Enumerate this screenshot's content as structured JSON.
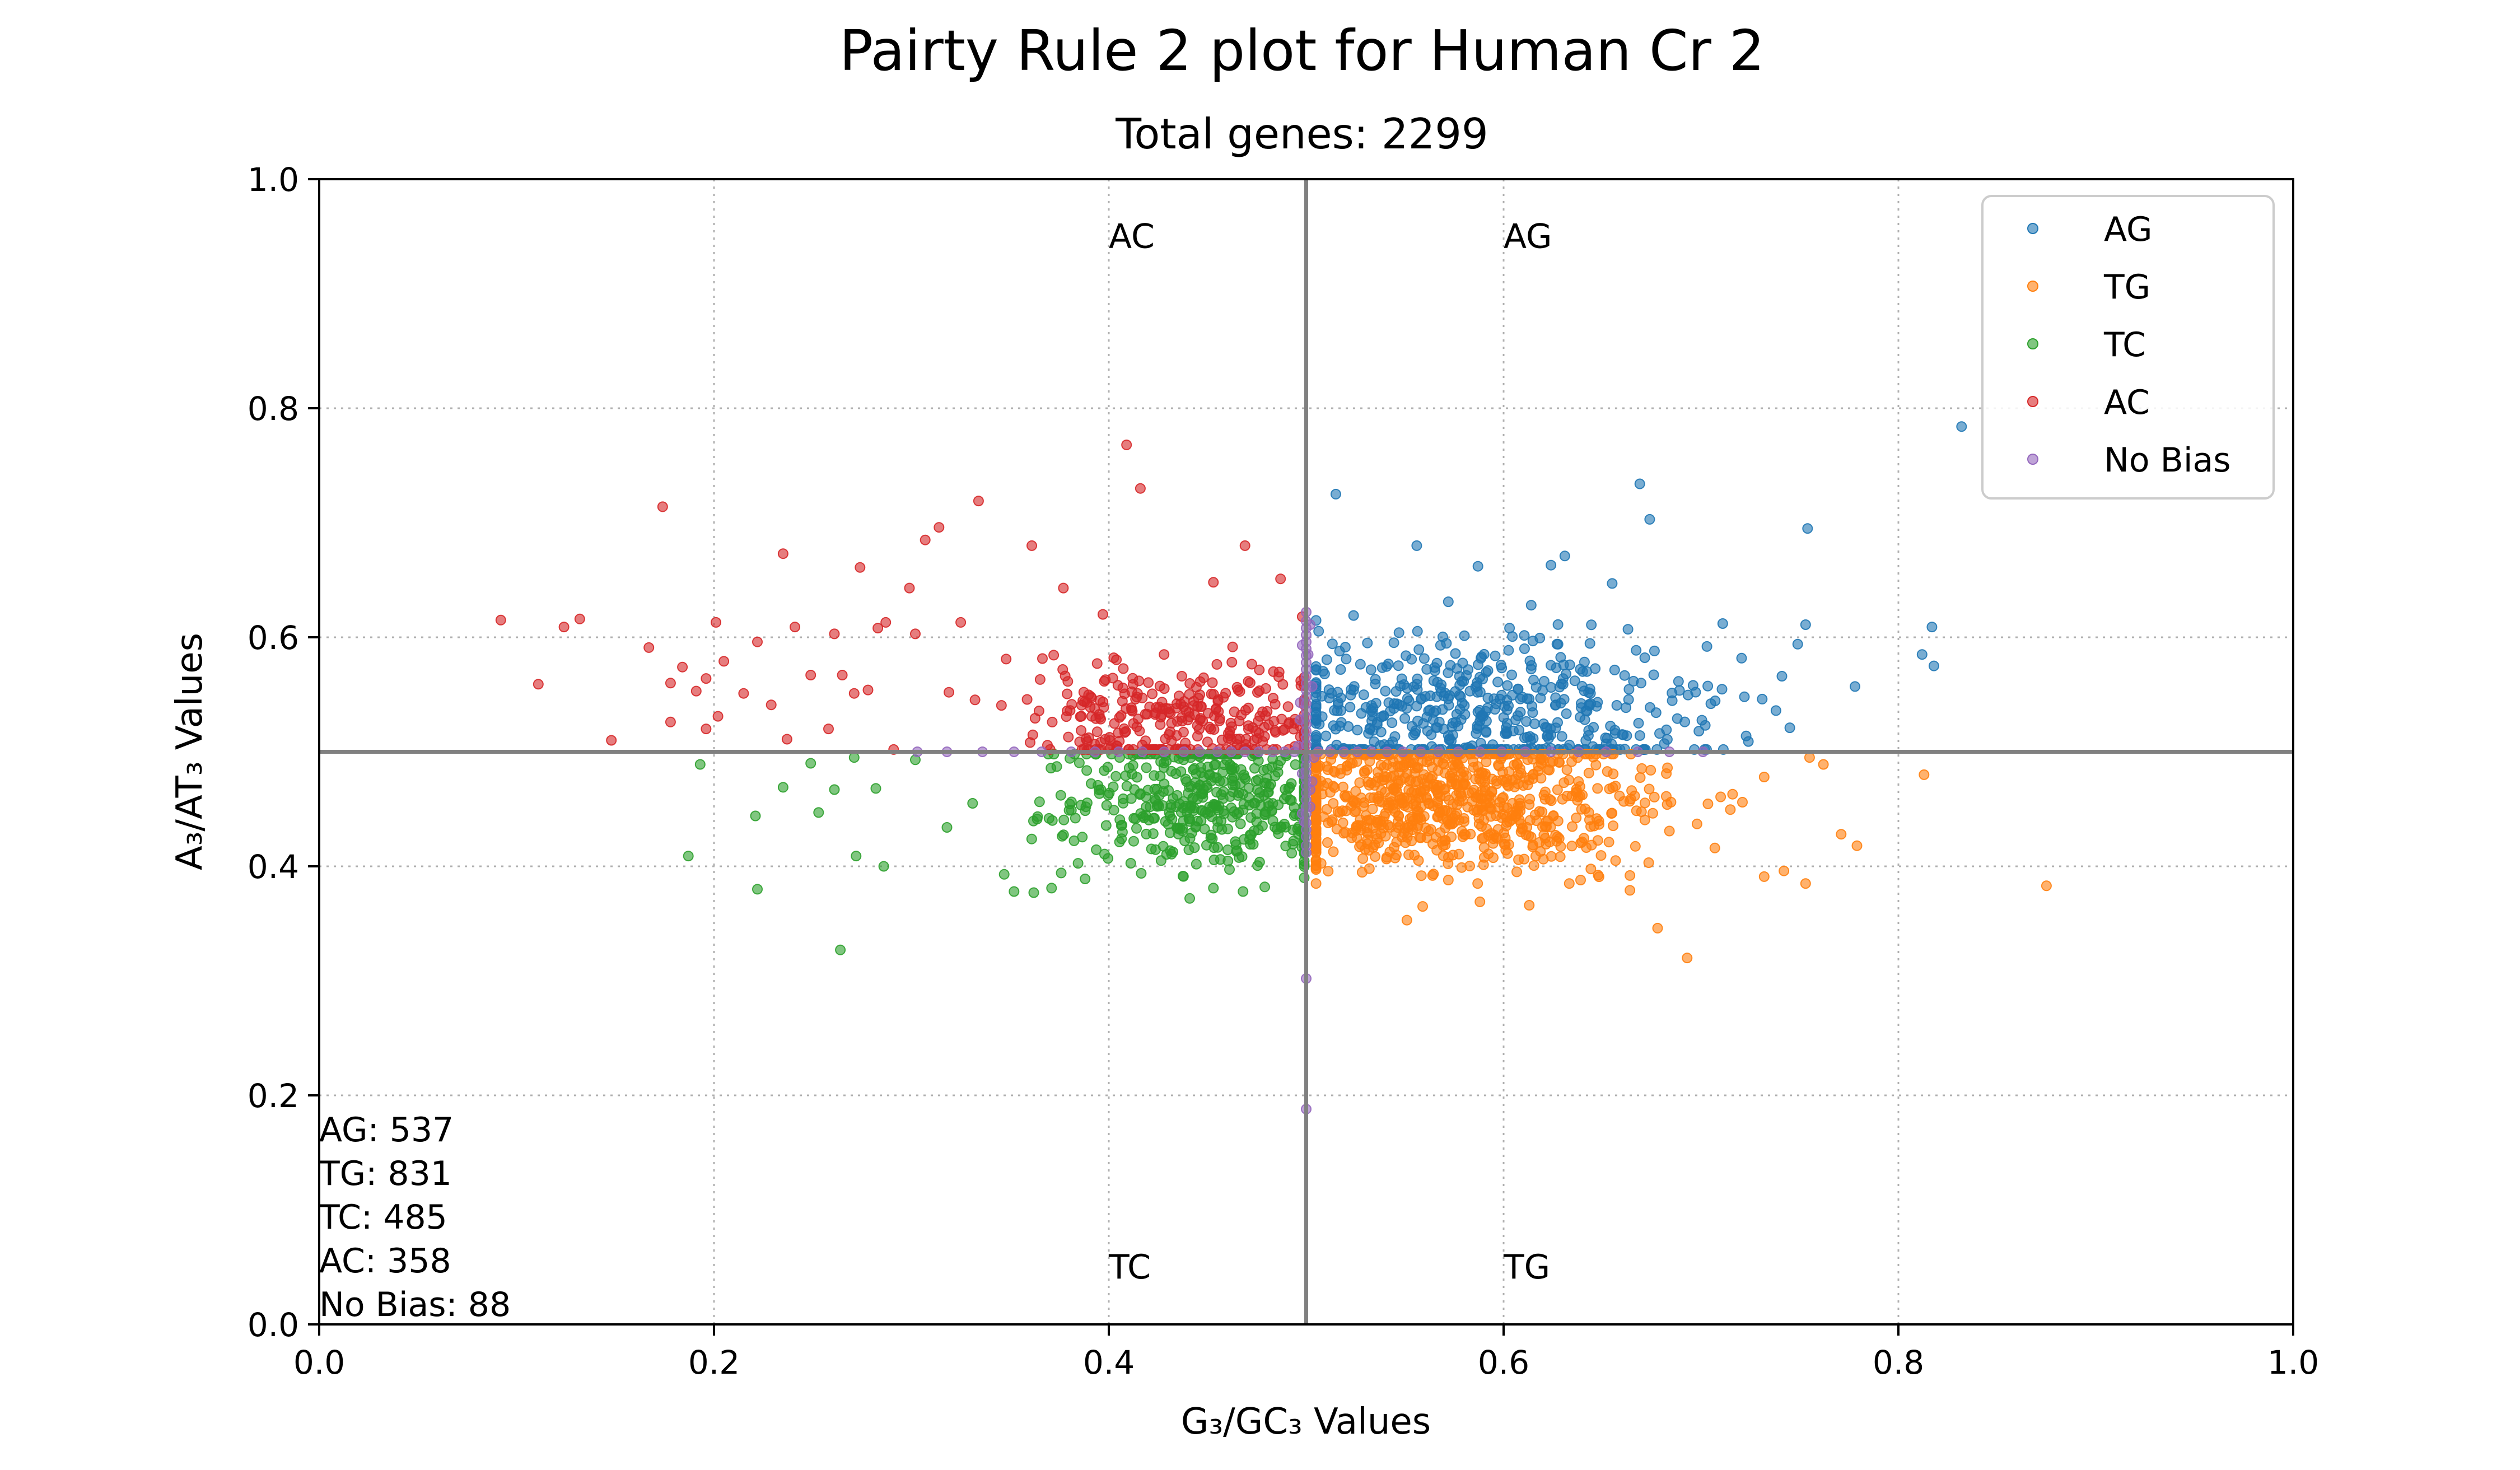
{
  "chart_data": {
    "type": "scatter",
    "title": "Pairty Rule 2 plot for Human Cr 2",
    "subtitle": "Total genes: 2299",
    "xlabel": "G₃/GC₃ Values",
    "ylabel": "A₃/AT₃ Values",
    "xlim": [
      0,
      1
    ],
    "ylim": [
      0,
      1
    ],
    "xticks": [
      "0.0",
      "0.2",
      "0.4",
      "0.6",
      "0.8",
      "1.0"
    ],
    "yticks": [
      "0.0",
      "0.2",
      "0.4",
      "0.6",
      "0.8",
      "1.0"
    ],
    "grid": true,
    "legend_position": "top-right",
    "reference_lines": {
      "x": 0.5,
      "y": 0.5
    },
    "quadrant_labels": [
      {
        "text": "AC",
        "x": 0.4,
        "y": 0.95
      },
      {
        "text": "AG",
        "x": 0.6,
        "y": 0.95
      },
      {
        "text": "TC",
        "x": 0.4,
        "y": 0.05
      },
      {
        "text": "TG",
        "x": 0.6,
        "y": 0.05
      }
    ],
    "counts": [
      "AG: 537",
      "TG: 831",
      "TC: 485",
      "AC: 358",
      "No Bias: 88"
    ],
    "series": [
      {
        "name": "AG",
        "color": "#1f77b4",
        "points": [
          [
            0.832,
            0.784
          ],
          [
            0.817,
            0.609
          ],
          [
            0.812,
            0.585
          ],
          [
            0.818,
            0.575
          ],
          [
            0.754,
            0.695
          ],
          [
            0.778,
            0.557
          ],
          [
            0.753,
            0.611
          ],
          [
            0.749,
            0.594
          ],
          [
            0.741,
            0.566
          ],
          [
            0.738,
            0.536
          ],
          [
            0.745,
            0.521
          ],
          [
            0.731,
            0.546
          ],
          [
            0.722,
            0.548
          ],
          [
            0.711,
            0.612
          ],
          [
            0.703,
            0.592
          ],
          [
            0.696,
            0.558
          ],
          [
            0.688,
            0.529
          ],
          [
            0.679,
            0.516
          ],
          [
            0.669,
            0.734
          ],
          [
            0.674,
            0.703
          ],
          [
            0.655,
            0.647
          ],
          [
            0.644,
            0.551
          ],
          [
            0.631,
            0.671
          ],
          [
            0.624,
            0.663
          ],
          [
            0.614,
            0.628
          ],
          [
            0.587,
            0.662
          ],
          [
            0.572,
            0.631
          ],
          [
            0.556,
            0.68
          ],
          [
            0.524,
            0.619
          ],
          [
            0.515,
            0.725
          ],
          [
            0.531,
            0.595
          ],
          [
            0.547,
            0.604
          ],
          [
            0.603,
            0.608
          ],
          [
            0.627,
            0.594
          ],
          [
            0.663,
            0.607
          ],
          [
            0.705,
            0.542
          ],
          [
            0.724,
            0.509
          ],
          [
            0.652,
            0.507
          ],
          [
            0.624,
            0.503
          ],
          [
            0.519,
            0.503
          ]
        ],
        "cloud": {
          "x": [
            0.505,
            0.735
          ],
          "y": [
            0.502,
            0.62
          ],
          "n": 497,
          "xc": 0.585,
          "yc": 0.53
        }
      },
      {
        "name": "TG",
        "color": "#ff7f0e",
        "points": [
          [
            0.875,
            0.383
          ],
          [
            0.813,
            0.48
          ],
          [
            0.779,
            0.418
          ],
          [
            0.771,
            0.428
          ],
          [
            0.753,
            0.385
          ],
          [
            0.755,
            0.495
          ],
          [
            0.742,
            0.396
          ],
          [
            0.732,
            0.391
          ],
          [
            0.762,
            0.489
          ],
          [
            0.693,
            0.32
          ],
          [
            0.678,
            0.346
          ],
          [
            0.664,
            0.392
          ],
          [
            0.664,
            0.379
          ],
          [
            0.639,
            0.388
          ],
          [
            0.613,
            0.366
          ],
          [
            0.588,
            0.369
          ],
          [
            0.564,
            0.392
          ],
          [
            0.559,
            0.365
          ],
          [
            0.551,
            0.353
          ],
          [
            0.532,
            0.398
          ],
          [
            0.572,
            0.388
          ],
          [
            0.523,
            0.425
          ],
          [
            0.707,
            0.416
          ],
          [
            0.716,
            0.463
          ],
          [
            0.721,
            0.456
          ],
          [
            0.698,
            0.437
          ],
          [
            0.683,
            0.486
          ],
          [
            0.732,
            0.478
          ]
        ],
        "cloud": {
          "x": [
            0.505,
            0.72
          ],
          "y": [
            0.385,
            0.498
          ],
          "n": 803,
          "xc": 0.57,
          "yc": 0.46
        }
      },
      {
        "name": "TC",
        "color": "#2ca02c",
        "points": [
          [
            0.193,
            0.489
          ],
          [
            0.187,
            0.409
          ],
          [
            0.222,
            0.38
          ],
          [
            0.221,
            0.444
          ],
          [
            0.235,
            0.469
          ],
          [
            0.249,
            0.49
          ],
          [
            0.253,
            0.447
          ],
          [
            0.261,
            0.467
          ],
          [
            0.264,
            0.327
          ],
          [
            0.271,
            0.495
          ],
          [
            0.272,
            0.409
          ],
          [
            0.282,
            0.468
          ],
          [
            0.286,
            0.4
          ],
          [
            0.302,
            0.493
          ],
          [
            0.318,
            0.434
          ],
          [
            0.331,
            0.455
          ],
          [
            0.347,
            0.393
          ],
          [
            0.352,
            0.378
          ],
          [
            0.362,
            0.377
          ],
          [
            0.371,
            0.381
          ],
          [
            0.388,
            0.389
          ],
          [
            0.441,
            0.372
          ],
          [
            0.453,
            0.381
          ],
          [
            0.468,
            0.378
          ],
          [
            0.479,
            0.382
          ]
        ],
        "cloud": {
          "x": [
            0.34,
            0.499
          ],
          "y": [
            0.39,
            0.498
          ],
          "n": 460,
          "xc": 0.45,
          "yc": 0.46
        }
      },
      {
        "name": "AC",
        "color": "#d62728",
        "points": [
          [
            0.092,
            0.615
          ],
          [
            0.111,
            0.559
          ],
          [
            0.124,
            0.609
          ],
          [
            0.132,
            0.616
          ],
          [
            0.148,
            0.51
          ],
          [
            0.167,
            0.591
          ],
          [
            0.174,
            0.714
          ],
          [
            0.178,
            0.56
          ],
          [
            0.178,
            0.526
          ],
          [
            0.184,
            0.574
          ],
          [
            0.191,
            0.553
          ],
          [
            0.196,
            0.52
          ],
          [
            0.196,
            0.564
          ],
          [
            0.201,
            0.613
          ],
          [
            0.202,
            0.531
          ],
          [
            0.205,
            0.579
          ],
          [
            0.215,
            0.551
          ],
          [
            0.222,
            0.596
          ],
          [
            0.229,
            0.541
          ],
          [
            0.235,
            0.673
          ],
          [
            0.237,
            0.511
          ],
          [
            0.241,
            0.609
          ],
          [
            0.249,
            0.567
          ],
          [
            0.258,
            0.52
          ],
          [
            0.261,
            0.603
          ],
          [
            0.265,
            0.567
          ],
          [
            0.271,
            0.551
          ],
          [
            0.274,
            0.661
          ],
          [
            0.278,
            0.554
          ],
          [
            0.283,
            0.608
          ],
          [
            0.287,
            0.613
          ],
          [
            0.291,
            0.502
          ],
          [
            0.299,
            0.643
          ],
          [
            0.302,
            0.603
          ],
          [
            0.307,
            0.685
          ],
          [
            0.314,
            0.696
          ],
          [
            0.319,
            0.552
          ],
          [
            0.325,
            0.613
          ],
          [
            0.334,
            0.719
          ],
          [
            0.348,
            0.581
          ],
          [
            0.361,
            0.68
          ],
          [
            0.377,
            0.643
          ],
          [
            0.397,
            0.62
          ],
          [
            0.409,
            0.768
          ],
          [
            0.416,
            0.73
          ],
          [
            0.428,
            0.585
          ],
          [
            0.437,
            0.566
          ],
          [
            0.453,
            0.648
          ],
          [
            0.469,
            0.68
          ],
          [
            0.487,
            0.651
          ],
          [
            0.498,
            0.618
          ]
        ],
        "cloud": {
          "x": [
            0.33,
            0.499
          ],
          "y": [
            0.502,
            0.6
          ],
          "n": 307,
          "xc": 0.44,
          "yc": 0.53
        }
      },
      {
        "name": "No Bias",
        "color": "#9467bd",
        "points": [
          [
            0.5,
            0.188
          ],
          [
            0.5,
            0.302
          ],
          [
            0.5,
            0.412
          ],
          [
            0.5,
            0.418
          ],
          [
            0.5,
            0.426
          ],
          [
            0.5,
            0.432
          ],
          [
            0.5,
            0.438
          ],
          [
            0.5,
            0.446
          ],
          [
            0.5,
            0.452
          ],
          [
            0.5,
            0.458
          ],
          [
            0.5,
            0.464
          ],
          [
            0.5,
            0.47
          ],
          [
            0.5,
            0.476
          ],
          [
            0.5,
            0.482
          ],
          [
            0.5,
            0.488
          ],
          [
            0.5,
            0.494
          ],
          [
            0.5,
            0.506
          ],
          [
            0.5,
            0.512
          ],
          [
            0.5,
            0.518
          ],
          [
            0.5,
            0.524
          ],
          [
            0.5,
            0.53
          ],
          [
            0.5,
            0.536
          ],
          [
            0.5,
            0.542
          ],
          [
            0.5,
            0.548
          ],
          [
            0.5,
            0.554
          ],
          [
            0.5,
            0.56
          ],
          [
            0.5,
            0.566
          ],
          [
            0.5,
            0.572
          ],
          [
            0.5,
            0.578
          ],
          [
            0.5,
            0.584
          ],
          [
            0.5,
            0.59
          ],
          [
            0.5,
            0.596
          ],
          [
            0.5,
            0.602
          ],
          [
            0.5,
            0.608
          ],
          [
            0.5,
            0.614
          ],
          [
            0.5,
            0.622
          ],
          [
            0.303,
            0.5
          ],
          [
            0.318,
            0.5
          ],
          [
            0.336,
            0.5
          ],
          [
            0.352,
            0.5
          ],
          [
            0.366,
            0.5
          ],
          [
            0.381,
            0.5
          ],
          [
            0.393,
            0.5
          ],
          [
            0.405,
            0.5
          ],
          [
            0.417,
            0.5
          ],
          [
            0.428,
            0.5
          ],
          [
            0.438,
            0.5
          ],
          [
            0.446,
            0.5
          ],
          [
            0.455,
            0.5
          ],
          [
            0.462,
            0.5
          ],
          [
            0.469,
            0.5
          ],
          [
            0.476,
            0.5
          ],
          [
            0.483,
            0.5
          ],
          [
            0.489,
            0.5
          ],
          [
            0.494,
            0.5
          ],
          [
            0.506,
            0.5
          ],
          [
            0.512,
            0.5
          ],
          [
            0.519,
            0.5
          ],
          [
            0.526,
            0.5
          ],
          [
            0.533,
            0.5
          ],
          [
            0.541,
            0.5
          ],
          [
            0.549,
            0.5
          ],
          [
            0.558,
            0.5
          ],
          [
            0.567,
            0.5
          ],
          [
            0.577,
            0.5
          ],
          [
            0.588,
            0.5
          ],
          [
            0.599,
            0.5
          ],
          [
            0.611,
            0.5
          ],
          [
            0.624,
            0.5
          ],
          [
            0.638,
            0.5
          ],
          [
            0.652,
            0.5
          ],
          [
            0.668,
            0.5
          ],
          [
            0.684,
            0.5
          ],
          [
            0.701,
            0.5
          ],
          [
            0.498,
            0.481
          ],
          [
            0.502,
            0.467
          ],
          [
            0.497,
            0.543
          ],
          [
            0.503,
            0.557
          ],
          [
            0.498,
            0.593
          ],
          [
            0.502,
            0.452
          ],
          [
            0.496,
            0.505
          ],
          [
            0.504,
            0.495
          ],
          [
            0.497,
            0.528
          ],
          [
            0.503,
            0.474
          ],
          [
            0.501,
            0.585
          ],
          [
            0.499,
            0.439
          ],
          [
            0.502,
            0.611
          ],
          [
            0.498,
            0.446
          ]
        ]
      }
    ]
  }
}
